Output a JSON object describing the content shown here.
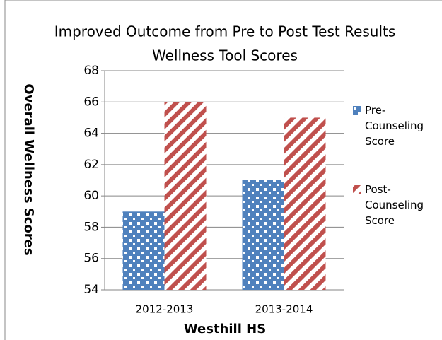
{
  "chart_data": {
    "type": "bar",
    "title": "Improved Outcome from Pre to Post Test Results",
    "subtitle": "Wellness Tool Scores",
    "x_label": "Westhill HS",
    "y_label": "Overall Wellness Scores",
    "categories": [
      "2012-2013",
      "2013-2014"
    ],
    "series": [
      {
        "name": "Pre-Counseling Score",
        "color": "#4f81bd",
        "values": [
          59,
          61
        ]
      },
      {
        "name": "Post-Counseling Score",
        "color": "#c0504d",
        "values": [
          66,
          65
        ]
      }
    ],
    "ylim": [
      54,
      68
    ],
    "yticks": [
      54,
      56,
      58,
      60,
      62,
      64,
      66,
      68
    ],
    "grid": true,
    "legend": "right"
  }
}
